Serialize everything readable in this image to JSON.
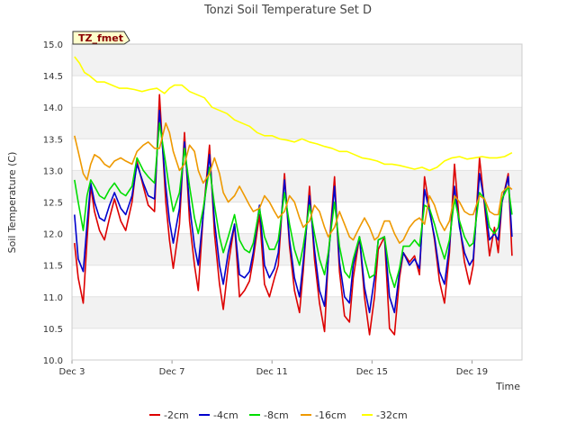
{
  "chart_data": {
    "type": "line",
    "title": "Tonzi Soil Temperature Set D",
    "xlabel": "Time",
    "ylabel": "Soil Temperature (C)",
    "tag": "TZ_fmet",
    "ylim": [
      10.0,
      15.0
    ],
    "xlim": [
      "Dec 3",
      "Dec 21"
    ],
    "y_ticks": [
      "10.0",
      "10.5",
      "11.0",
      "11.5",
      "12.0",
      "12.5",
      "13.0",
      "13.5",
      "14.0",
      "14.5",
      "15.0"
    ],
    "x_ticks": [
      "Dec 3",
      "Dec 7",
      "Dec 11",
      "Dec 15",
      "Dec 19"
    ],
    "grid": "horizontal bands",
    "legend": "bottom",
    "series": [
      {
        "name": "-2cm",
        "color": "#dd0000",
        "x": [
          3.1,
          3.25,
          3.45,
          3.6,
          3.75,
          3.9,
          4.1,
          4.3,
          4.5,
          4.7,
          4.95,
          5.15,
          5.4,
          5.6,
          5.85,
          6.05,
          6.3,
          6.5,
          6.75,
          6.9,
          7.05,
          7.3,
          7.5,
          7.7,
          7.9,
          8.05,
          8.25,
          8.5,
          8.7,
          8.9,
          9.05,
          9.25,
          9.5,
          9.7,
          9.9,
          10.1,
          10.25,
          10.5,
          10.7,
          10.9,
          11.1,
          11.25,
          11.5,
          11.7,
          11.9,
          12.1,
          12.25,
          12.5,
          12.7,
          12.9,
          13.1,
          13.25,
          13.5,
          13.7,
          13.9,
          14.1,
          14.25,
          14.5,
          14.7,
          14.9,
          15.1,
          15.25,
          15.5,
          15.7,
          15.9,
          16.1,
          16.25,
          16.5,
          16.7,
          16.9,
          17.1,
          17.3,
          17.5,
          17.7,
          17.9,
          18.1,
          18.3,
          18.5,
          18.7,
          18.9,
          19.05,
          19.3,
          19.5,
          19.7,
          19.9,
          20.05,
          20.2,
          20.45,
          20.6
        ],
        "y": [
          11.85,
          11.3,
          10.9,
          11.9,
          12.75,
          12.35,
          12.05,
          11.9,
          12.25,
          12.55,
          12.2,
          12.05,
          12.5,
          13.15,
          12.75,
          12.45,
          12.35,
          14.2,
          12.5,
          11.9,
          11.45,
          12.15,
          13.6,
          12.2,
          11.5,
          11.1,
          12.3,
          13.4,
          12.0,
          11.2,
          10.8,
          11.5,
          12.15,
          11.0,
          11.1,
          11.25,
          11.6,
          12.3,
          11.2,
          11.0,
          11.3,
          11.5,
          12.95,
          11.8,
          11.1,
          10.75,
          11.4,
          12.75,
          11.6,
          10.9,
          10.45,
          11.6,
          12.9,
          11.4,
          10.7,
          10.6,
          11.3,
          11.95,
          11.0,
          10.4,
          11.0,
          11.75,
          11.95,
          10.5,
          10.4,
          11.3,
          11.7,
          11.55,
          11.65,
          11.35,
          12.9,
          12.4,
          11.9,
          11.25,
          10.9,
          11.7,
          13.1,
          12.15,
          11.55,
          11.2,
          11.5,
          13.2,
          12.45,
          11.65,
          12.1,
          11.7,
          12.5,
          12.95,
          11.65
        ]
      },
      {
        "name": "-4cm",
        "color": "#0000cc",
        "x": [
          3.1,
          3.25,
          3.45,
          3.6,
          3.75,
          3.9,
          4.1,
          4.3,
          4.5,
          4.7,
          4.95,
          5.15,
          5.4,
          5.6,
          5.85,
          6.05,
          6.3,
          6.5,
          6.75,
          6.9,
          7.05,
          7.3,
          7.5,
          7.7,
          7.9,
          8.05,
          8.25,
          8.5,
          8.7,
          8.9,
          9.05,
          9.25,
          9.5,
          9.7,
          9.9,
          10.1,
          10.25,
          10.5,
          10.7,
          10.9,
          11.1,
          11.25,
          11.5,
          11.7,
          11.9,
          12.1,
          12.25,
          12.5,
          12.7,
          12.9,
          13.1,
          13.25,
          13.5,
          13.7,
          13.9,
          14.1,
          14.25,
          14.5,
          14.7,
          14.9,
          15.1,
          15.25,
          15.5,
          15.7,
          15.9,
          16.1,
          16.25,
          16.5,
          16.7,
          16.9,
          17.1,
          17.3,
          17.5,
          17.7,
          17.9,
          18.1,
          18.3,
          18.5,
          18.7,
          18.9,
          19.05,
          19.3,
          19.5,
          19.7,
          19.9,
          20.05,
          20.2,
          20.45,
          20.6
        ],
        "y": [
          12.3,
          11.6,
          11.4,
          12.15,
          12.8,
          12.5,
          12.25,
          12.2,
          12.45,
          12.65,
          12.4,
          12.3,
          12.6,
          13.1,
          12.8,
          12.6,
          12.55,
          13.95,
          12.75,
          12.2,
          11.85,
          12.4,
          13.45,
          12.45,
          11.8,
          11.5,
          12.3,
          13.25,
          12.2,
          11.5,
          11.2,
          11.7,
          12.15,
          11.35,
          11.3,
          11.4,
          11.7,
          12.45,
          11.5,
          11.3,
          11.45,
          11.7,
          12.85,
          11.9,
          11.3,
          11.0,
          11.55,
          12.6,
          11.75,
          11.1,
          10.85,
          11.6,
          12.75,
          11.55,
          11.0,
          10.9,
          11.5,
          11.95,
          11.15,
          10.75,
          11.3,
          11.9,
          11.95,
          11.0,
          10.75,
          11.4,
          11.7,
          11.5,
          11.6,
          11.45,
          12.7,
          12.35,
          11.95,
          11.4,
          11.2,
          11.8,
          12.75,
          12.1,
          11.7,
          11.5,
          11.6,
          12.95,
          12.5,
          11.9,
          12.0,
          11.9,
          12.5,
          12.9,
          11.95
        ]
      },
      {
        "name": "-8cm",
        "color": "#00dd00",
        "x": [
          3.1,
          3.25,
          3.45,
          3.6,
          3.75,
          3.9,
          4.1,
          4.3,
          4.5,
          4.7,
          4.95,
          5.15,
          5.4,
          5.6,
          5.85,
          6.05,
          6.3,
          6.5,
          6.75,
          6.9,
          7.05,
          7.3,
          7.5,
          7.7,
          7.9,
          8.05,
          8.25,
          8.5,
          8.7,
          8.9,
          9.05,
          9.25,
          9.5,
          9.7,
          9.9,
          10.1,
          10.25,
          10.5,
          10.7,
          10.9,
          11.1,
          11.25,
          11.5,
          11.7,
          11.9,
          12.1,
          12.25,
          12.5,
          12.7,
          12.9,
          13.1,
          13.25,
          13.5,
          13.7,
          13.9,
          14.1,
          14.25,
          14.5,
          14.7,
          14.9,
          15.1,
          15.25,
          15.5,
          15.7,
          15.9,
          16.1,
          16.25,
          16.5,
          16.7,
          16.9,
          17.1,
          17.3,
          17.5,
          17.7,
          17.9,
          18.1,
          18.3,
          18.5,
          18.7,
          18.9,
          19.05,
          19.3,
          19.5,
          19.7,
          19.9,
          20.05,
          20.2,
          20.45,
          20.6
        ],
        "y": [
          12.85,
          12.5,
          12.05,
          12.6,
          12.85,
          12.75,
          12.6,
          12.55,
          12.7,
          12.8,
          12.65,
          12.6,
          12.75,
          13.2,
          13.0,
          12.9,
          12.8,
          13.75,
          13.1,
          12.7,
          12.35,
          12.65,
          13.35,
          12.75,
          12.25,
          12.0,
          12.4,
          13.05,
          12.45,
          11.95,
          11.7,
          11.95,
          12.3,
          11.9,
          11.75,
          11.7,
          11.85,
          12.4,
          11.95,
          11.75,
          11.75,
          11.9,
          12.65,
          12.15,
          11.75,
          11.5,
          11.8,
          12.45,
          12.0,
          11.6,
          11.35,
          11.7,
          12.5,
          11.8,
          11.4,
          11.3,
          11.6,
          11.95,
          11.6,
          11.3,
          11.35,
          11.9,
          11.95,
          11.4,
          11.15,
          11.45,
          11.8,
          11.8,
          11.9,
          11.8,
          12.45,
          12.4,
          12.15,
          11.85,
          11.6,
          11.9,
          12.55,
          12.2,
          11.95,
          11.8,
          11.85,
          12.65,
          12.55,
          12.1,
          12.0,
          12.1,
          12.55,
          12.75,
          12.3
        ]
      },
      {
        "name": "-16cm",
        "color": "#ee9900",
        "x": [
          3.1,
          3.25,
          3.45,
          3.6,
          3.75,
          3.9,
          4.1,
          4.3,
          4.5,
          4.7,
          4.95,
          5.15,
          5.4,
          5.6,
          5.85,
          6.05,
          6.3,
          6.5,
          6.75,
          6.9,
          7.05,
          7.3,
          7.5,
          7.7,
          7.9,
          8.05,
          8.25,
          8.5,
          8.7,
          8.9,
          9.05,
          9.25,
          9.5,
          9.7,
          9.9,
          10.1,
          10.25,
          10.5,
          10.7,
          10.9,
          11.1,
          11.25,
          11.5,
          11.7,
          11.9,
          12.1,
          12.25,
          12.5,
          12.7,
          12.9,
          13.1,
          13.25,
          13.5,
          13.7,
          13.9,
          14.1,
          14.25,
          14.5,
          14.7,
          14.9,
          15.1,
          15.25,
          15.5,
          15.7,
          15.9,
          16.1,
          16.25,
          16.5,
          16.7,
          16.9,
          17.1,
          17.3,
          17.5,
          17.7,
          17.9,
          18.1,
          18.3,
          18.5,
          18.7,
          18.9,
          19.05,
          19.3,
          19.5,
          19.7,
          19.9,
          20.05,
          20.2,
          20.45,
          20.6
        ],
        "y": [
          13.55,
          13.3,
          12.95,
          12.85,
          13.1,
          13.25,
          13.2,
          13.1,
          13.05,
          13.15,
          13.2,
          13.15,
          13.1,
          13.3,
          13.4,
          13.45,
          13.35,
          13.35,
          13.75,
          13.6,
          13.3,
          13.0,
          13.1,
          13.4,
          13.3,
          13.0,
          12.8,
          12.95,
          13.2,
          12.95,
          12.65,
          12.5,
          12.6,
          12.75,
          12.6,
          12.45,
          12.35,
          12.4,
          12.6,
          12.5,
          12.35,
          12.25,
          12.35,
          12.6,
          12.5,
          12.25,
          12.1,
          12.2,
          12.45,
          12.35,
          12.1,
          11.95,
          12.1,
          12.35,
          12.15,
          11.95,
          11.9,
          12.1,
          12.25,
          12.1,
          11.9,
          11.95,
          12.2,
          12.2,
          12.0,
          11.85,
          11.9,
          12.1,
          12.2,
          12.25,
          12.15,
          12.6,
          12.45,
          12.2,
          12.05,
          12.2,
          12.6,
          12.5,
          12.35,
          12.3,
          12.3,
          12.6,
          12.55,
          12.35,
          12.3,
          12.3,
          12.65,
          12.75,
          12.7
        ]
      },
      {
        "name": "-32cm",
        "color": "#ffff00",
        "x": [
          3.1,
          3.3,
          3.5,
          3.7,
          4.0,
          4.3,
          4.6,
          4.9,
          5.2,
          5.5,
          5.8,
          6.1,
          6.4,
          6.7,
          6.9,
          7.1,
          7.4,
          7.7,
          8.0,
          8.3,
          8.6,
          8.9,
          9.2,
          9.5,
          9.8,
          10.1,
          10.4,
          10.7,
          11.0,
          11.3,
          11.6,
          11.9,
          12.2,
          12.5,
          12.8,
          13.1,
          13.4,
          13.7,
          14.0,
          14.3,
          14.6,
          14.9,
          15.2,
          15.5,
          15.8,
          16.1,
          16.4,
          16.7,
          17.0,
          17.3,
          17.6,
          17.9,
          18.2,
          18.5,
          18.8,
          19.1,
          19.4,
          19.7,
          20.0,
          20.3,
          20.6
        ],
        "y": [
          14.8,
          14.7,
          14.55,
          14.5,
          14.4,
          14.4,
          14.35,
          14.3,
          14.3,
          14.28,
          14.25,
          14.28,
          14.3,
          14.22,
          14.3,
          14.35,
          14.35,
          14.25,
          14.2,
          14.15,
          14.0,
          13.95,
          13.9,
          13.8,
          13.75,
          13.7,
          13.6,
          13.55,
          13.55,
          13.5,
          13.48,
          13.45,
          13.5,
          13.45,
          13.42,
          13.38,
          13.35,
          13.3,
          13.3,
          13.25,
          13.2,
          13.18,
          13.15,
          13.1,
          13.1,
          13.08,
          13.05,
          13.02,
          13.05,
          13.0,
          13.05,
          13.15,
          13.2,
          13.22,
          13.18,
          13.2,
          13.22,
          13.2,
          13.2,
          13.22,
          13.28
        ]
      }
    ]
  }
}
